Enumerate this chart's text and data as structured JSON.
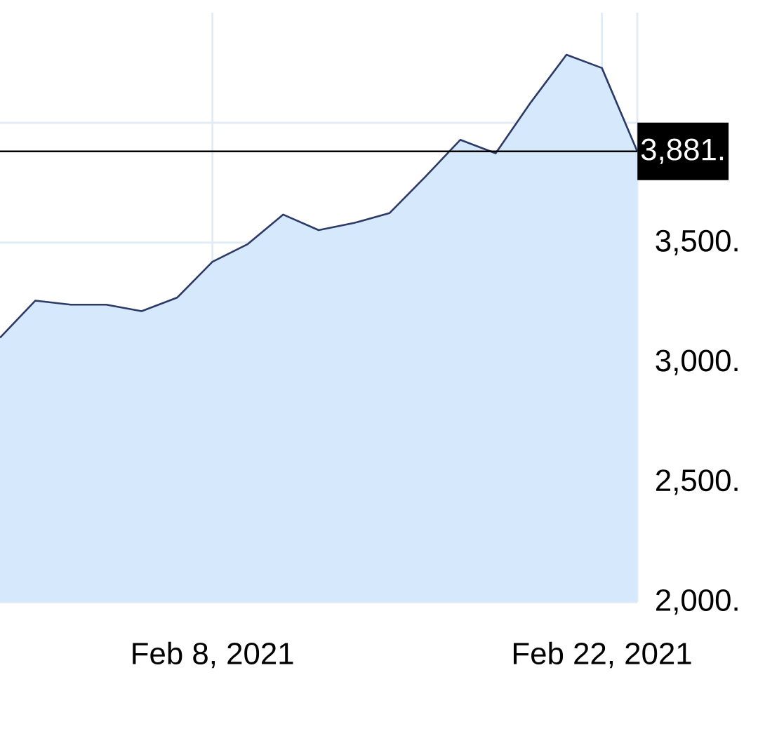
{
  "chart_data": {
    "type": "area",
    "categories": [
      null,
      null,
      null,
      null,
      null,
      null,
      "Feb 8, 2021",
      null,
      null,
      null,
      null,
      null,
      null,
      null,
      null,
      null,
      null,
      "Feb 22, 2021",
      null
    ],
    "values": [
      3103,
      3258,
      3241,
      3241,
      3214,
      3270,
      3420,
      3494,
      3617,
      3552,
      3582,
      3623,
      3773,
      3929,
      3873,
      4087,
      4284,
      4229,
      3881
    ],
    "color": "#d6e8fb",
    "ylim": [
      2000,
      4460
    ],
    "yticks": [
      {
        "value": 2000,
        "label": "2,000."
      },
      {
        "value": 2500,
        "label": "2,500."
      },
      {
        "value": 3000,
        "label": "3,000."
      },
      {
        "value": 3500,
        "label": "3,500."
      },
      {
        "value": 4000,
        "label": null
      }
    ],
    "ref_lines": [
      {
        "axis": "y",
        "value": 3881,
        "label": "3,881.",
        "color": "#000000"
      }
    ],
    "grid": true
  }
}
